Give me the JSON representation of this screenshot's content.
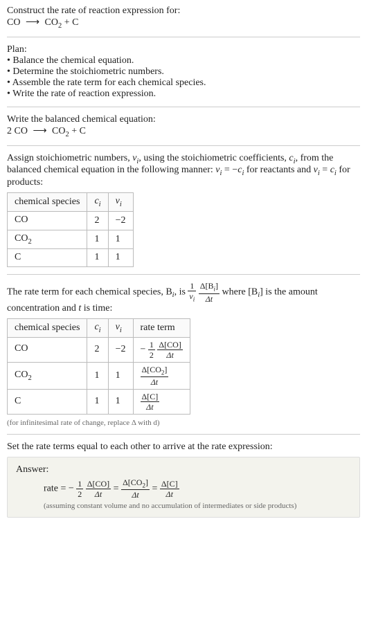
{
  "header": {
    "title": "Construct the rate of reaction expression for:",
    "eq_lhs": "CO",
    "eq_arrow": "⟶",
    "eq_rhs_a": "CO",
    "eq_rhs_a_sub": "2",
    "eq_plus": " + ",
    "eq_rhs_b": "C"
  },
  "plan": {
    "title": "Plan:",
    "items": [
      "• Balance the chemical equation.",
      "• Determine the stoichiometric numbers.",
      "• Assemble the rate term for each chemical species.",
      "• Write the rate of reaction expression."
    ]
  },
  "balanced": {
    "title": "Write the balanced chemical equation:",
    "lhs_coef": "2 ",
    "lhs": "CO",
    "arrow": "⟶",
    "rhs_a": "CO",
    "rhs_a_sub": "2",
    "plus": " + ",
    "rhs_b": "C"
  },
  "assign": {
    "text_a": "Assign stoichiometric numbers, ",
    "nu": "ν",
    "nu_sub": "i",
    "text_b": ", using the stoichiometric coefficients, ",
    "c": "c",
    "c_sub": "i",
    "text_c": ", from the balanced chemical equation in the following manner: ",
    "rel1_lhs": "ν",
    "rel1_lhs_sub": "i",
    "rel1_eq": " = −",
    "rel1_rhs": "c",
    "rel1_rhs_sub": "i",
    "rel1_tail": " for reactants and ",
    "rel2_lhs": "ν",
    "rel2_lhs_sub": "i",
    "rel2_eq": " = ",
    "rel2_rhs": "c",
    "rel2_rhs_sub": "i",
    "rel2_tail": " for products:"
  },
  "table1": {
    "h1": "chemical species",
    "h2": "c",
    "h2_sub": "i",
    "h3": "ν",
    "h3_sub": "i",
    "rows": [
      {
        "sp": "CO",
        "sp_sub": "",
        "c": "2",
        "nu": "−2"
      },
      {
        "sp": "CO",
        "sp_sub": "2",
        "c": "1",
        "nu": "1"
      },
      {
        "sp": "C",
        "sp_sub": "",
        "c": "1",
        "nu": "1"
      }
    ]
  },
  "rateterm": {
    "text_a": "The rate term for each chemical species, B",
    "bi_sub": "i",
    "text_b": ", is ",
    "frac1_num": "1",
    "frac1_den_a": "ν",
    "frac1_den_sub": "i",
    "frac2_num_a": "Δ[B",
    "frac2_num_sub": "i",
    "frac2_num_b": "]",
    "frac2_den": "Δt",
    "text_c": " where [B",
    "text_c_sub": "i",
    "text_d": "] is the amount concentration and ",
    "t": "t",
    "text_e": " is time:"
  },
  "table2": {
    "h1": "chemical species",
    "h2": "c",
    "h2_sub": "i",
    "h3": "ν",
    "h3_sub": "i",
    "h4": "rate term",
    "rows": [
      {
        "sp": "CO",
        "sp_sub": "",
        "c": "2",
        "nu": "−2",
        "rt_pre": "−",
        "rt_f1_num": "1",
        "rt_f1_den": "2",
        "rt_f2_num": "Δ[CO]",
        "rt_f2_den": "Δt"
      },
      {
        "sp": "CO",
        "sp_sub": "2",
        "c": "1",
        "nu": "1",
        "rt_pre": "",
        "rt_f1_num": "",
        "rt_f1_den": "",
        "rt_f2_num_a": "Δ[CO",
        "rt_f2_num_sub": "2",
        "rt_f2_num_b": "]",
        "rt_f2_den": "Δt"
      },
      {
        "sp": "C",
        "sp_sub": "",
        "c": "1",
        "nu": "1",
        "rt_pre": "",
        "rt_f1_num": "",
        "rt_f1_den": "",
        "rt_f2_num": "Δ[C]",
        "rt_f2_den": "Δt"
      }
    ]
  },
  "inf_note": "(for infinitesimal rate of change, replace Δ with d)",
  "set_equal": "Set the rate terms equal to each other to arrive at the rate expression:",
  "answer": {
    "label": "Answer:",
    "rate_intro": "rate = −",
    "f1_num": "1",
    "f1_den": "2",
    "f2_num": "Δ[CO]",
    "f2_den": "Δt",
    "eq": " = ",
    "f3_num_a": "Δ[CO",
    "f3_num_sub": "2",
    "f3_num_b": "]",
    "f3_den": "Δt",
    "eq2": " = ",
    "f4_num": "Δ[C]",
    "f4_den": "Δt",
    "note": "(assuming constant volume and no accumulation of intermediates or side products)"
  },
  "colors": {
    "text": "#222222",
    "rule": "#cccccc",
    "border": "#bbbbbb",
    "answer_bg": "#f3f3ed",
    "note": "#666666"
  }
}
